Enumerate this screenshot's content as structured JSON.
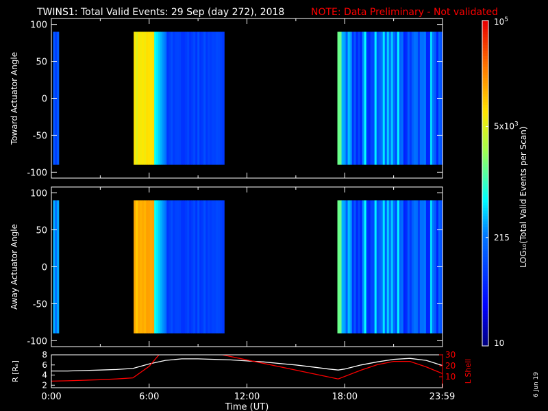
{
  "title": "TWINS1: Total Valid Events: 29 Sep (day 272), 2018",
  "note": "NOTE: Data Preliminary - Not validated",
  "date_stamp": "6 Jun 19",
  "colors": {
    "background": "#000000",
    "foreground": "#ffffff",
    "note": "#ff0000",
    "lshell": "#ff0000",
    "radius": "#ffffff"
  },
  "chart_data": [
    {
      "type": "heatmap",
      "ylabel": "Toward Actuator Angle",
      "xlim": [
        0,
        24
      ],
      "ylim": [
        -108,
        108
      ],
      "yticks": [
        100,
        50,
        0,
        -50,
        -100
      ],
      "angle_range": [
        -90,
        90
      ],
      "data_intervals": [
        {
          "start": 0.1,
          "end": 0.45,
          "level": 0.26
        },
        {
          "start": 5.05,
          "end": 10.6,
          "level": 0.4
        },
        {
          "start": 17.55,
          "end": 24.0,
          "level": 0.35
        }
      ]
    },
    {
      "type": "heatmap",
      "ylabel": "Away Actuator Angle",
      "xlim": [
        0,
        24
      ],
      "ylim": [
        -108,
        108
      ],
      "yticks": [
        100,
        50,
        0,
        -50,
        -100
      ],
      "angle_range": [
        -90,
        90
      ],
      "data_intervals": [
        {
          "start": 0.1,
          "end": 0.45,
          "level": 0.35
        },
        {
          "start": 5.05,
          "end": 10.6,
          "level": 0.45
        },
        {
          "start": 17.55,
          "end": 24.0,
          "level": 0.38
        }
      ]
    },
    {
      "type": "line",
      "xlabel": "Time (UT)",
      "ylabel": "R [Rₑ]",
      "y2label": "L Shell",
      "xlim": [
        0,
        24
      ],
      "ylim": [
        1.5,
        8
      ],
      "yticks": [
        2,
        4,
        6,
        8
      ],
      "y2lim": [
        0,
        30
      ],
      "y2ticks": [
        10,
        20,
        30
      ],
      "xticks": [
        {
          "value": 0,
          "label": "0:00"
        },
        {
          "value": 6,
          "label": "6:00"
        },
        {
          "value": 12,
          "label": "12:00"
        },
        {
          "value": 18,
          "label": "18:00"
        },
        {
          "value": 23.98,
          "label": "23:59"
        }
      ],
      "series": [
        {
          "axis": "left",
          "x": [
            0,
            1,
            2,
            3,
            4,
            5,
            6,
            7,
            8,
            9,
            10,
            11,
            12,
            13,
            14,
            15,
            16,
            17,
            17.6,
            18,
            19,
            20,
            21,
            22,
            23,
            23.98
          ],
          "values": [
            4.8,
            4.8,
            4.9,
            5.0,
            5.1,
            5.3,
            6.2,
            6.9,
            7.2,
            7.2,
            7.1,
            7.0,
            6.8,
            6.6,
            6.3,
            6.0,
            5.6,
            5.2,
            5.0,
            5.2,
            6.0,
            6.6,
            7.1,
            7.3,
            6.9,
            5.9
          ]
        },
        {
          "axis": "right",
          "x": [
            0,
            1,
            2,
            3,
            4,
            5,
            6,
            6.6,
            7.2,
            10.5,
            17.6,
            19,
            20,
            21,
            22,
            23,
            23.98
          ],
          "values": [
            6,
            6.3,
            6.8,
            7.3,
            8,
            9,
            19.5,
            30,
            31,
            30,
            8,
            16,
            21,
            24,
            24,
            19,
            13
          ]
        }
      ]
    }
  ],
  "colorbar": {
    "label": "LOG₁₀(Total Valid Events per Scan)",
    "ticks": [
      {
        "value": 10,
        "label": "10",
        "sup": ""
      },
      {
        "value": 215,
        "label": "215",
        "sup": ""
      },
      {
        "value": 5000,
        "label": "5x10",
        "sup": "3"
      },
      {
        "value": 100000,
        "label": "10",
        "sup": "5"
      }
    ],
    "range": [
      10,
      100000
    ],
    "scale": "log"
  }
}
